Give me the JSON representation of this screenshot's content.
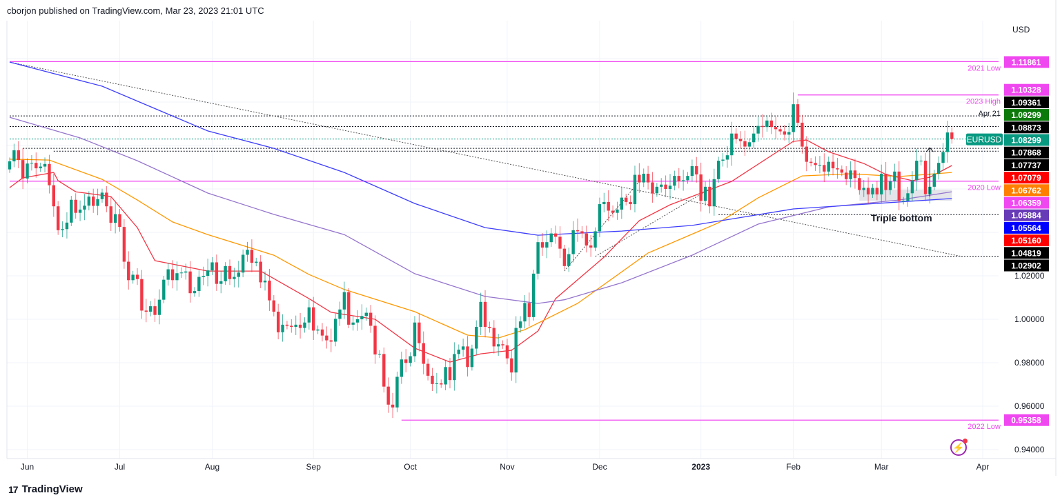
{
  "header": {
    "published": "cborjon published on TradingView.com, Mar 23, 2023 21:01 UTC"
  },
  "footer": {
    "brand": "TradingView"
  },
  "icons": {
    "lightning": "lightning-icon",
    "logo": "tradingview-logo"
  },
  "chart_data": {
    "type": "candlestick",
    "symbol": "EURUSD",
    "currency": "USD",
    "ylim": [
      0.935,
      1.125
    ],
    "grid": true,
    "y_ticks": [
      "1.02000",
      "1.00000",
      "0.98000",
      "0.96000",
      "0.94000"
    ],
    "y_tick_values": [
      1.02,
      1.0,
      0.98,
      0.96,
      0.94
    ],
    "x_ticks": [
      {
        "label": "Jun",
        "bar": 4,
        "bold": false
      },
      {
        "label": "Jul",
        "bar": 25,
        "bold": false
      },
      {
        "label": "Aug",
        "bar": 46,
        "bold": false
      },
      {
        "label": "Sep",
        "bar": 69,
        "bold": false
      },
      {
        "label": "Oct",
        "bar": 91,
        "bold": false
      },
      {
        "label": "Nov",
        "bar": 113,
        "bold": false
      },
      {
        "label": "Dec",
        "bar": 134,
        "bold": false
      },
      {
        "label": "2023",
        "bar": 157,
        "bold": true
      },
      {
        "label": "Feb",
        "bar": 178,
        "bold": false
      },
      {
        "label": "Mar",
        "bar": 198,
        "bold": false
      },
      {
        "label": "Apr",
        "bar": 221,
        "bold": false
      }
    ],
    "colors": {
      "up": "#089981",
      "down": "#f23645"
    },
    "first_open": 1.069,
    "close": [
      1.0727,
      1.0778,
      1.0733,
      1.0648,
      1.0717,
      1.072,
      1.0695,
      1.0703,
      1.0715,
      1.0617,
      1.052,
      1.041,
      1.0415,
      1.0445,
      1.055,
      1.049,
      1.0505,
      1.0523,
      1.0565,
      1.0522,
      1.0553,
      1.0583,
      1.052,
      1.0444,
      1.0484,
      1.0425,
      1.0265,
      1.018,
      1.0205,
      1.0185,
      1.004,
      1.0035,
      1.006,
      1.002,
      1.009,
      1.0182,
      1.023,
      1.018,
      1.0212,
      1.0215,
      1.022,
      1.012,
      1.013,
      1.0195,
      1.02,
      1.0225,
      1.0262,
      1.0163,
      1.0175,
      1.0245,
      1.0185,
      1.0195,
      1.0215,
      1.0297,
      1.032,
      1.026,
      1.0265,
      1.017,
      1.0178,
      1.0087,
      1.0035,
      0.994,
      0.9975,
      0.997,
      0.9965,
      0.9975,
      0.996,
      0.9985,
      1.0055,
      0.9948,
      0.9953,
      0.9925,
      0.9903,
      0.9897,
      1.0002,
      1.0045,
      1.0125,
      0.9975,
      0.9985,
      1.0,
      1.0015,
      1.003,
      0.997,
      0.9838,
      0.984,
      0.969,
      0.9607,
      0.9594,
      0.9735,
      0.9815,
      0.9799,
      0.983,
      0.9985,
      0.989,
      0.9795,
      0.974,
      0.9702,
      0.9705,
      0.97,
      0.978,
      0.972,
      0.984,
      0.986,
      0.9875,
      0.978,
      0.9865,
      0.9965,
      1.008,
      0.9965,
      0.996,
      0.9875,
      0.9885,
      0.988,
      0.982,
      0.9755,
      0.996,
      0.999,
      1.0075,
      1.001,
      1.021,
      1.0355,
      1.033,
      1.0355,
      1.0395,
      1.038,
      1.0325,
      1.0245,
      1.03,
      1.041,
      1.0405,
      1.0395,
      1.034,
      1.033,
      1.0405,
      1.053,
      1.054,
      1.05,
      1.049,
      1.0505,
      1.056,
      1.054,
      1.053,
      1.0665,
      1.063,
      1.067,
      1.063,
      1.058,
      1.061,
      1.062,
      1.06,
      1.0615,
      1.066,
      1.0635,
      1.064,
      1.066,
      1.0705,
      1.0667,
      1.0545,
      1.061,
      1.052,
      1.0645,
      1.073,
      1.0735,
      1.0755,
      1.0855,
      1.083,
      1.082,
      1.0795,
      1.0815,
      1.0855,
      1.089,
      1.0885,
      1.0915,
      1.0885,
      1.0875,
      1.0865,
      1.085,
      1.0862,
      1.099,
      1.0905,
      1.0795,
      1.0725,
      1.072,
      1.071,
      1.071,
      1.068,
      1.0725,
      1.0695,
      1.069,
      1.0675,
      1.0645,
      1.0685,
      1.065,
      1.0595,
      1.0605,
      1.0575,
      1.0605,
      1.0575,
      1.067,
      1.0595,
      1.0635,
      1.068,
      1.0545,
      1.0545,
      1.058,
      1.064,
      1.073,
      1.073,
      1.0576,
      1.061,
      1.067,
      1.072,
      1.077,
      1.086,
      1.083
    ],
    "moving_averages": [
      {
        "color": "#f23645",
        "last": "1.07079",
        "points": [
          [
            0,
            1.0606
          ],
          [
            3,
            1.0651
          ],
          [
            10,
            1.0676
          ],
          [
            11,
            1.0638
          ],
          [
            15,
            1.0587
          ],
          [
            23,
            1.0565
          ],
          [
            29,
            1.0422
          ],
          [
            33,
            1.027
          ],
          [
            45,
            1.0222
          ],
          [
            57,
            1.0222
          ],
          [
            68,
            1.0095
          ],
          [
            73,
            1.0032
          ],
          [
            83,
            1.0
          ],
          [
            92,
            0.9867
          ],
          [
            100,
            0.9803
          ],
          [
            107,
            0.9841
          ],
          [
            114,
            0.9857
          ],
          [
            120,
            0.9946
          ],
          [
            124,
            1.0095
          ],
          [
            135,
            1.0286
          ],
          [
            143,
            1.0454
          ],
          [
            150,
            1.0527
          ],
          [
            157,
            1.0581
          ],
          [
            164,
            1.0635
          ],
          [
            178,
            1.0819
          ],
          [
            181,
            1.0825
          ],
          [
            186,
            1.0771
          ],
          [
            194,
            1.0717
          ],
          [
            199,
            1.0667
          ],
          [
            205,
            1.0638
          ],
          [
            209,
            1.0654
          ],
          [
            214,
            1.0708
          ]
        ]
      },
      {
        "color": "#ff9800",
        "last": "1.06762",
        "points": [
          [
            0,
            1.0737
          ],
          [
            9,
            1.0733
          ],
          [
            21,
            1.0644
          ],
          [
            29,
            1.0549
          ],
          [
            37,
            1.0448
          ],
          [
            45,
            1.039
          ],
          [
            60,
            1.0295
          ],
          [
            68,
            1.0206
          ],
          [
            76,
            1.0137
          ],
          [
            92,
            1.0035
          ],
          [
            104,
            0.9927
          ],
          [
            111,
            0.9914
          ],
          [
            117,
            0.9952
          ],
          [
            129,
            1.0073
          ],
          [
            145,
            1.0305
          ],
          [
            161,
            1.0444
          ],
          [
            170,
            1.0559
          ],
          [
            180,
            1.066
          ],
          [
            191,
            1.067
          ],
          [
            202,
            1.0657
          ],
          [
            214,
            1.0676
          ]
        ]
      },
      {
        "color": "#9575cd",
        "last": "1.05884",
        "points": [
          [
            0,
            1.093
          ],
          [
            16,
            1.0835
          ],
          [
            29,
            1.073
          ],
          [
            45,
            1.0581
          ],
          [
            60,
            1.0483
          ],
          [
            76,
            1.039
          ],
          [
            92,
            1.021
          ],
          [
            108,
            1.0105
          ],
          [
            120,
            1.0073
          ],
          [
            126,
            1.009
          ],
          [
            139,
            1.0168
          ],
          [
            155,
            1.0295
          ],
          [
            170,
            1.0438
          ],
          [
            186,
            1.0517
          ],
          [
            202,
            1.0549
          ],
          [
            214,
            1.0587
          ]
        ]
      },
      {
        "color": "#3d3dff",
        "last": "1.05564",
        "points": [
          [
            0,
            1.1184
          ],
          [
            21,
            1.1073
          ],
          [
            45,
            1.0867
          ],
          [
            60,
            1.0787
          ],
          [
            76,
            1.0676
          ],
          [
            92,
            1.0533
          ],
          [
            108,
            1.0422
          ],
          [
            120,
            1.0387
          ],
          [
            139,
            1.0406
          ],
          [
            155,
            1.0432
          ],
          [
            178,
            1.0508
          ],
          [
            214,
            1.0556
          ]
        ]
      }
    ],
    "levels": [
      {
        "price": 1.11861,
        "label": "2021 Low",
        "color": "#f048f0",
        "style": "solid",
        "from_bar": 0
      },
      {
        "price": 1.10328,
        "label": "2023 High",
        "color": "#f048f0",
        "style": "solid",
        "from_bar": 179
      },
      {
        "price": 1.09361,
        "label": "",
        "color": "#131722",
        "style": "dotted",
        "from_bar": 0
      },
      {
        "price": 1.08873,
        "label": "",
        "color": "#131722",
        "style": "dotted",
        "from_bar": 0
      },
      {
        "price": 1.08299,
        "label": "",
        "color": "#089981",
        "style": "dotted",
        "from_bar": 0
      },
      {
        "price": 1.07868,
        "label": "",
        "color": "#131722",
        "style": "dotted",
        "from_bar": 3
      },
      {
        "price": 1.07737,
        "label": "",
        "color": "#131722",
        "style": "dotted",
        "from_bar": 10
      },
      {
        "price": 1.06359,
        "label": "2020 Low",
        "color": "#f048f0",
        "style": "solid",
        "from_bar": 0
      },
      {
        "price": 1.04819,
        "label": "",
        "color": "#131722",
        "style": "dotted",
        "from_bar": 161
      },
      {
        "price": 1.02902,
        "label": "",
        "color": "#131722",
        "style": "dotted",
        "from_bar": 134
      },
      {
        "price": 0.95358,
        "label": "2022 Low",
        "color": "#f048f0",
        "style": "solid",
        "from_bar": 89
      }
    ],
    "trendlines": [
      {
        "from": [
          0,
          1.1184
        ],
        "to": [
          216,
          1.029
        ]
      },
      {
        "from": [
          126,
          1.0222
        ],
        "to": [
          143,
          1.0635
        ]
      },
      {
        "from": [
          133,
          1.0289
        ],
        "to": [
          159,
          1.06
        ]
      }
    ],
    "annotations": {
      "apr21": "Apr 21",
      "triple_bottom": "Triple bottom",
      "triple_bottom_zone": {
        "from_bar": 193,
        "to_bar": 214,
        "top": 1.0597,
        "bottom": 1.0546
      },
      "arrow": {
        "bar": 209,
        "from": 1.0565,
        "to": 1.079
      }
    },
    "price_labels": [
      {
        "text": "1.11861",
        "bg": "#f048f0"
      },
      {
        "text": "1.10328",
        "bg": "#f048f0"
      },
      {
        "text": "1.09361",
        "bg": "#000000"
      },
      {
        "text": "1.09299",
        "bg": "#0b7a0b"
      },
      {
        "text": "1.08873",
        "bg": "#000000"
      },
      {
        "text": "1.08299",
        "bg": "#089981"
      },
      {
        "text": "1.07868",
        "bg": "#000000"
      },
      {
        "text": "1.07737",
        "bg": "#000000"
      },
      {
        "text": "1.07079",
        "bg": "#ff0000"
      },
      {
        "text": "1.06762",
        "bg": "#ff7f00"
      },
      {
        "text": "1.06359",
        "bg": "#f048f0"
      },
      {
        "text": "1.05884",
        "bg": "#673ab7"
      },
      {
        "text": "1.05564",
        "bg": "#0000ff"
      },
      {
        "text": "1.05160",
        "bg": "#ff0000"
      },
      {
        "text": "1.04819",
        "bg": "#000000"
      },
      {
        "text": "1.02902",
        "bg": "#000000"
      },
      {
        "text": "0.95358",
        "bg": "#f048f0",
        "price": 0.95358
      }
    ],
    "symbol_tag": {
      "text": "EURUSD",
      "bg": "#089981"
    }
  }
}
